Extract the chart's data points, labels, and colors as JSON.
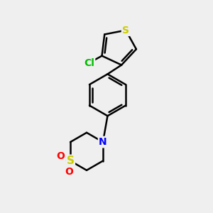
{
  "bg_color": "#efefef",
  "atom_colors": {
    "S_thiophene": "#cccc00",
    "S_sulfone": "#cccc00",
    "Cl": "#00bb00",
    "N": "#0000ff",
    "O": "#ff0000",
    "C": "#000000"
  },
  "bond_color": "#000000",
  "figsize": [
    3.0,
    3.0
  ],
  "dpi": 100
}
